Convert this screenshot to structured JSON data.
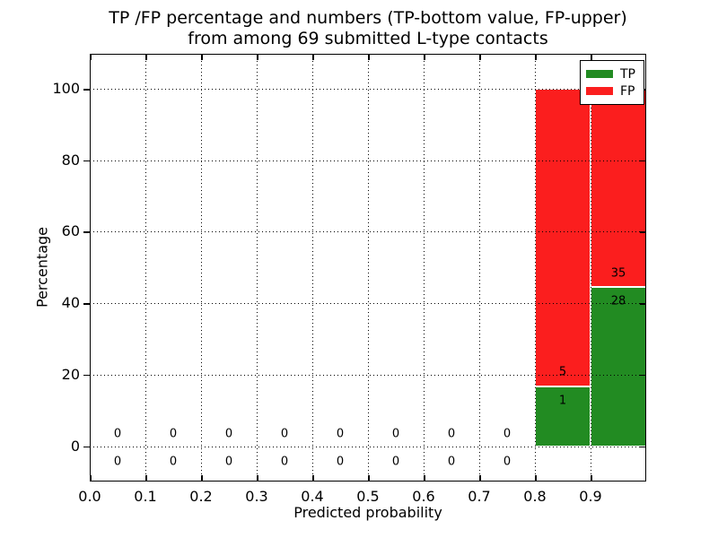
{
  "figure": {
    "title_line1": "TP /FP percentage and numbers (TP-bottom value, FP-upper)",
    "title_line2": "from among 69 submitted L-type contacts"
  },
  "axes": {
    "xlabel": "Predicted probability",
    "ylabel": "Percentage",
    "xticks": [
      {
        "v": 0.0,
        "label": "0.0"
      },
      {
        "v": 0.1,
        "label": "0.1"
      },
      {
        "v": 0.2,
        "label": "0.2"
      },
      {
        "v": 0.3,
        "label": "0.3"
      },
      {
        "v": 0.4,
        "label": "0.4"
      },
      {
        "v": 0.5,
        "label": "0.5"
      },
      {
        "v": 0.6,
        "label": "0.6"
      },
      {
        "v": 0.7,
        "label": "0.7"
      },
      {
        "v": 0.8,
        "label": "0.8"
      },
      {
        "v": 0.9,
        "label": "0.9"
      }
    ],
    "yticks": [
      {
        "v": 0,
        "label": "0"
      },
      {
        "v": 20,
        "label": "20"
      },
      {
        "v": 40,
        "label": "40"
      },
      {
        "v": 60,
        "label": "60"
      },
      {
        "v": 80,
        "label": "80"
      },
      {
        "v": 100,
        "label": "100"
      }
    ]
  },
  "legend": {
    "items": [
      {
        "label": "TP",
        "color": "#228b22"
      },
      {
        "label": "FP",
        "color": "#fb1e1e"
      }
    ]
  },
  "chart_data": {
    "type": "bar",
    "stacked": true,
    "title": "TP /FP percentage and numbers (TP-bottom value, FP-upper) from among 69 submitted L-type contacts",
    "xlabel": "Predicted probability",
    "ylabel": "Percentage",
    "xlim": [
      0.0,
      1.0
    ],
    "ylim": [
      -9.9,
      109.8
    ],
    "grid": "dotted",
    "legend_position": "upper right",
    "total_contacts": 69,
    "bin_edges": [
      0.0,
      0.1,
      0.2,
      0.3,
      0.4,
      0.5,
      0.6,
      0.7,
      0.8,
      0.9,
      1.0
    ],
    "series": [
      {
        "name": "TP",
        "color": "#228b22",
        "counts": [
          0,
          0,
          0,
          0,
          0,
          0,
          0,
          0,
          1,
          28
        ],
        "pct": [
          0,
          0,
          0,
          0,
          0,
          0,
          0,
          0,
          16.667,
          44.444
        ]
      },
      {
        "name": "FP",
        "color": "#fb1e1e",
        "counts": [
          0,
          0,
          0,
          0,
          0,
          0,
          0,
          0,
          5,
          35
        ],
        "pct": [
          0,
          0,
          0,
          0,
          0,
          0,
          0,
          0,
          83.333,
          55.556
        ]
      }
    ],
    "bins": [
      {
        "x0": 0.0,
        "x1": 0.1,
        "tp_count": 0,
        "fp_count": 0,
        "tp_pct": 0,
        "fp_pct": 0
      },
      {
        "x0": 0.1,
        "x1": 0.2,
        "tp_count": 0,
        "fp_count": 0,
        "tp_pct": 0,
        "fp_pct": 0
      },
      {
        "x0": 0.2,
        "x1": 0.3,
        "tp_count": 0,
        "fp_count": 0,
        "tp_pct": 0,
        "fp_pct": 0
      },
      {
        "x0": 0.3,
        "x1": 0.4,
        "tp_count": 0,
        "fp_count": 0,
        "tp_pct": 0,
        "fp_pct": 0
      },
      {
        "x0": 0.4,
        "x1": 0.5,
        "tp_count": 0,
        "fp_count": 0,
        "tp_pct": 0,
        "fp_pct": 0
      },
      {
        "x0": 0.5,
        "x1": 0.6,
        "tp_count": 0,
        "fp_count": 0,
        "tp_pct": 0,
        "fp_pct": 0
      },
      {
        "x0": 0.6,
        "x1": 0.7,
        "tp_count": 0,
        "fp_count": 0,
        "tp_pct": 0,
        "fp_pct": 0
      },
      {
        "x0": 0.7,
        "x1": 0.8,
        "tp_count": 0,
        "fp_count": 0,
        "tp_pct": 0,
        "fp_pct": 0
      },
      {
        "x0": 0.8,
        "x1": 0.9,
        "tp_count": 1,
        "fp_count": 5,
        "tp_pct": 16.667,
        "fp_pct": 83.333
      },
      {
        "x0": 0.9,
        "x1": 1.0,
        "tp_count": 28,
        "fp_count": 35,
        "tp_pct": 44.444,
        "fp_pct": 55.556
      }
    ],
    "zero_label_y": {
      "top": 3.4,
      "bottom": -4.4
    },
    "count_label_offset": 4
  }
}
